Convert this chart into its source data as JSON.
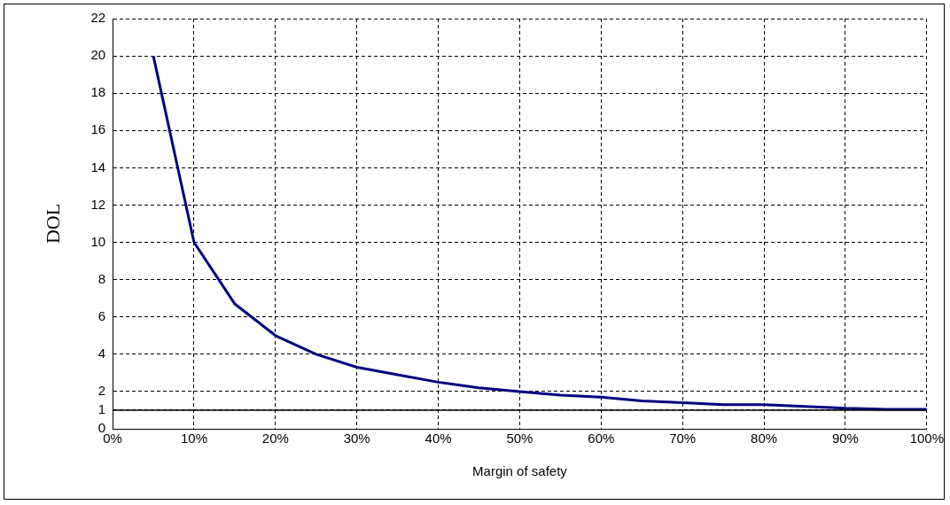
{
  "chart_data": {
    "type": "line",
    "xlabel": "Margin of safety",
    "ylabel": "DOL",
    "x": [
      5,
      10,
      15,
      20,
      25,
      30,
      35,
      40,
      45,
      50,
      55,
      60,
      65,
      70,
      75,
      80,
      85,
      90,
      95,
      100
    ],
    "series": [
      {
        "color": "#000080",
        "values": [
          20,
          10,
          6.7,
          5,
          4,
          3.3,
          2.9,
          2.5,
          2.2,
          2,
          1.8,
          1.7,
          1.5,
          1.4,
          1.3,
          1.3,
          1.2,
          1.1,
          1.05,
          1.05
        ]
      }
    ],
    "xlim": [
      0,
      100
    ],
    "xticks": [
      {
        "value": 0,
        "label": "0%"
      },
      {
        "value": 10,
        "label": "10%"
      },
      {
        "value": 20,
        "label": "20%"
      },
      {
        "value": 30,
        "label": "30%"
      },
      {
        "value": 40,
        "label": "40%"
      },
      {
        "value": 50,
        "label": "50%"
      },
      {
        "value": 60,
        "label": "60%"
      },
      {
        "value": 70,
        "label": "70%"
      },
      {
        "value": 80,
        "label": "80%"
      },
      {
        "value": 90,
        "label": "90%"
      },
      {
        "value": 100,
        "label": "100%"
      }
    ],
    "ylim": [
      0,
      22
    ],
    "yticks": [
      0,
      1,
      2,
      4,
      6,
      8,
      10,
      12,
      14,
      16,
      18,
      20,
      22
    ],
    "ref_lines": [
      {
        "axis": "y",
        "value": 1,
        "color": "#000000"
      }
    ],
    "grid": true,
    "marker": "none",
    "line_style": "solid",
    "legend": false
  }
}
